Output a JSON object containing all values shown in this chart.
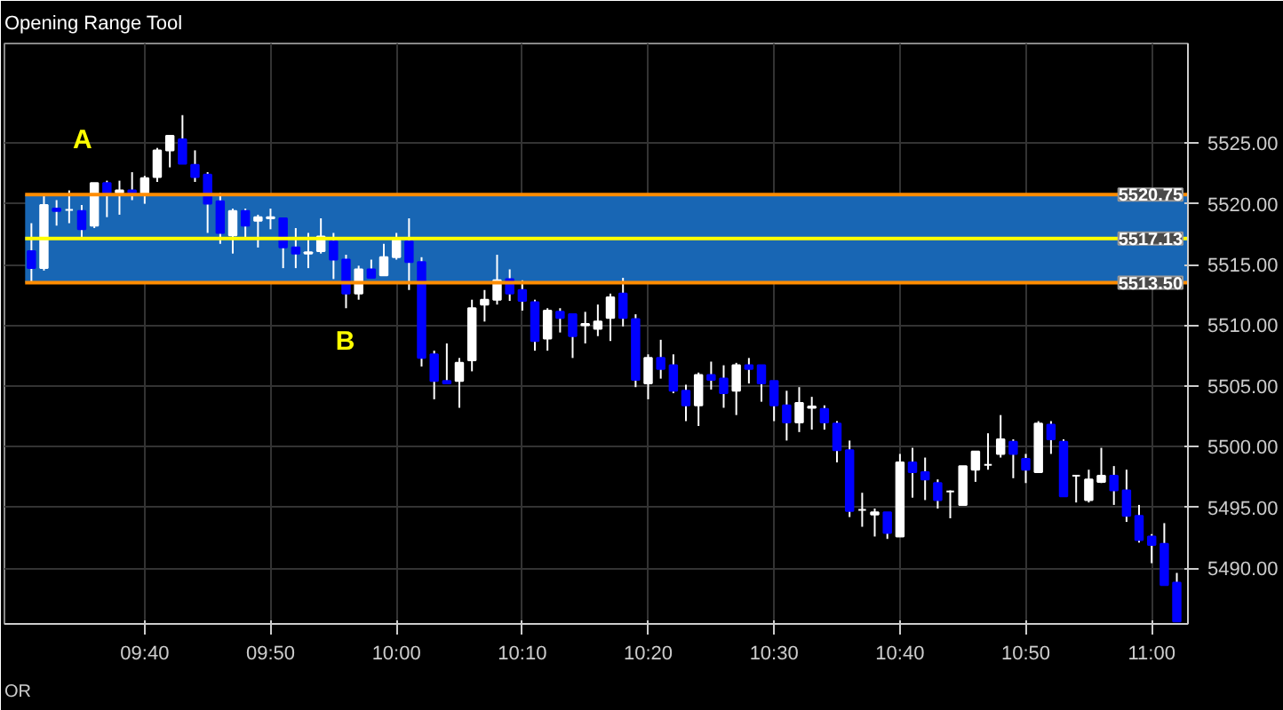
{
  "chart_data": {
    "type": "candlestick",
    "title": "Opening Range Tool",
    "x": [
      9.5167,
      9.5333,
      9.55,
      9.5667,
      9.5833,
      9.6,
      9.6167,
      9.6333,
      9.65,
      9.6667,
      9.6833,
      9.7,
      9.7167,
      9.7333,
      9.75,
      9.7667,
      9.7833,
      9.8,
      9.8167,
      9.8333,
      9.85,
      9.8667,
      9.8833,
      9.9,
      9.9167,
      9.9333,
      9.95,
      9.9667,
      9.9833,
      10.0,
      10.0167,
      10.0333,
      10.05,
      10.0667,
      10.0833,
      10.1,
      10.1167,
      10.1333,
      10.15,
      10.1667,
      10.1833,
      10.2,
      10.2167,
      10.2333,
      10.25,
      10.2667,
      10.2833,
      10.3,
      10.3167,
      10.3333,
      10.35,
      10.3667,
      10.3833,
      10.4,
      10.4167,
      10.4333,
      10.45,
      10.4667,
      10.4833,
      10.5,
      10.5167,
      10.5333,
      10.55,
      10.5667,
      10.5833,
      10.6,
      10.6167,
      10.6333,
      10.65,
      10.6667,
      10.6833,
      10.7,
      10.7167,
      10.7333,
      10.75,
      10.7667,
      10.7833,
      10.8,
      10.8167,
      10.8333,
      10.85,
      10.8667,
      10.8833,
      10.9,
      10.9167,
      10.9333,
      10.95,
      10.9667,
      10.9833,
      11.0,
      11.0167,
      11.0333
    ],
    "ohlc": [
      [
        5516.1,
        5518.4,
        5513.5,
        5514.7
      ],
      [
        5514.7,
        5520.75,
        5514.5,
        5519.9
      ],
      [
        5519.6,
        5520.3,
        5518.2,
        5519.4
      ],
      [
        5519.5,
        5521.1,
        5518.4,
        5519.5
      ],
      [
        5519.4,
        5519.9,
        5517.1,
        5517.9
      ],
      [
        5518.2,
        5521.7,
        5518.0,
        5521.7
      ],
      [
        5521.7,
        5521.9,
        5518.9,
        5520.9
      ],
      [
        5520.9,
        5521.9,
        5519.1,
        5521.1
      ],
      [
        5521.1,
        5522.6,
        5520.3,
        5520.9
      ],
      [
        5520.9,
        5522.3,
        5520.0,
        5522.1
      ],
      [
        5522.2,
        5524.6,
        5521.8,
        5524.4
      ],
      [
        5524.4,
        5525.6,
        5523.0,
        5525.6
      ],
      [
        5525.3,
        5527.3,
        5523.3,
        5523.3
      ],
      [
        5523.2,
        5524.4,
        5521.8,
        5522.2
      ],
      [
        5522.4,
        5522.6,
        5517.6,
        5520.0
      ],
      [
        5520.2,
        5520.9,
        5516.7,
        5517.6
      ],
      [
        5517.4,
        5519.6,
        5515.9,
        5519.4
      ],
      [
        5519.4,
        5519.6,
        5517.1,
        5518.2
      ],
      [
        5518.6,
        5519.1,
        5516.4,
        5518.9
      ],
      [
        5518.8,
        5519.6,
        5517.9,
        5518.9
      ],
      [
        5518.8,
        5518.8,
        5514.7,
        5516.4
      ],
      [
        5516.4,
        5518.0,
        5514.7,
        5515.9
      ],
      [
        5515.9,
        5517.6,
        5514.7,
        5516.0
      ],
      [
        5516.1,
        5518.8,
        5515.9,
        5517.3
      ],
      [
        5516.9,
        5517.6,
        5513.8,
        5515.4
      ],
      [
        5515.4,
        5515.8,
        5511.4,
        5512.6
      ],
      [
        5512.6,
        5514.9,
        5512.1,
        5514.6
      ],
      [
        5514.6,
        5515.4,
        5513.9,
        5513.9
      ],
      [
        5514.1,
        5516.7,
        5514.1,
        5515.6
      ],
      [
        5515.6,
        5517.6,
        5515.4,
        5517.0
      ],
      [
        5516.9,
        5518.8,
        5512.9,
        5515.2
      ],
      [
        5515.2,
        5515.6,
        5506.6,
        5507.3
      ],
      [
        5507.6,
        5507.9,
        5503.9,
        5505.4
      ],
      [
        5505.4,
        5508.5,
        5505.2,
        5505.2
      ],
      [
        5505.4,
        5507.3,
        5503.2,
        5506.9
      ],
      [
        5507.1,
        5512.1,
        5506.2,
        5511.4
      ],
      [
        5511.7,
        5512.9,
        5510.3,
        5512.1
      ],
      [
        5512.1,
        5515.8,
        5511.7,
        5513.7
      ],
      [
        5513.8,
        5514.6,
        5512.0,
        5512.6
      ],
      [
        5512.9,
        5513.7,
        5511.2,
        5512.0
      ],
      [
        5511.9,
        5512.1,
        5507.9,
        5508.7
      ],
      [
        5508.9,
        5511.4,
        5507.9,
        5511.2
      ],
      [
        5511.1,
        5511.4,
        5509.4,
        5510.6
      ],
      [
        5510.9,
        5510.9,
        5507.3,
        5509.1
      ],
      [
        5510.0,
        5511.1,
        5508.5,
        5510.1
      ],
      [
        5509.7,
        5511.7,
        5509.1,
        5510.3
      ],
      [
        5510.6,
        5512.6,
        5508.7,
        5512.3
      ],
      [
        5512.6,
        5513.9,
        5509.9,
        5510.6
      ],
      [
        5510.5,
        5510.9,
        5504.9,
        5505.5
      ],
      [
        5505.2,
        5507.6,
        5503.9,
        5507.3
      ],
      [
        5507.3,
        5508.8,
        5505.6,
        5506.4
      ],
      [
        5506.7,
        5507.6,
        5504.4,
        5504.6
      ],
      [
        5504.6,
        5505.1,
        5502.1,
        5503.4
      ],
      [
        5503.4,
        5506.1,
        5501.7,
        5505.9
      ],
      [
        5505.9,
        5507.0,
        5504.7,
        5505.5
      ],
      [
        5505.6,
        5506.7,
        5503.2,
        5504.4
      ],
      [
        5504.6,
        5506.9,
        5502.6,
        5506.7
      ],
      [
        5506.7,
        5507.3,
        5505.2,
        5506.4
      ],
      [
        5506.7,
        5506.7,
        5503.7,
        5505.2
      ],
      [
        5505.4,
        5505.4,
        5502.1,
        5503.4
      ],
      [
        5503.4,
        5504.6,
        5500.5,
        5502.0
      ],
      [
        5502.0,
        5504.9,
        5501.2,
        5503.6
      ],
      [
        5503.2,
        5504.1,
        5501.4,
        5503.3
      ],
      [
        5503.1,
        5503.4,
        5501.4,
        5502.0
      ],
      [
        5501.9,
        5502.1,
        5498.7,
        5499.7
      ],
      [
        5499.7,
        5500.5,
        5494.2,
        5494.7
      ],
      [
        5494.8,
        5496.2,
        5493.4,
        5494.8
      ],
      [
        5494.4,
        5494.9,
        5492.6,
        5494.6
      ],
      [
        5494.6,
        5494.6,
        5492.4,
        5492.9
      ],
      [
        5492.6,
        5499.4,
        5492.6,
        5498.7
      ],
      [
        5498.7,
        5499.9,
        5495.8,
        5497.9
      ],
      [
        5497.9,
        5499.1,
        5495.6,
        5497.3
      ],
      [
        5497.0,
        5497.3,
        5494.9,
        5495.6
      ],
      [
        5496.3,
        5496.4,
        5494.1,
        5496.3
      ],
      [
        5495.2,
        5498.4,
        5495.2,
        5498.4
      ],
      [
        5498.1,
        5499.6,
        5497.1,
        5499.6
      ],
      [
        5498.5,
        5501.1,
        5498.1,
        5498.5
      ],
      [
        5499.4,
        5502.6,
        5499.1,
        5500.6
      ],
      [
        5500.4,
        5500.6,
        5497.4,
        5499.4
      ],
      [
        5499.0,
        5499.4,
        5497.0,
        5498.1
      ],
      [
        5497.9,
        5502.1,
        5497.9,
        5501.9
      ],
      [
        5501.8,
        5502.1,
        5499.4,
        5500.6
      ],
      [
        5500.4,
        5500.6,
        5495.9,
        5495.9
      ],
      [
        5497.6,
        5497.6,
        5495.4,
        5497.6
      ],
      [
        5495.6,
        5498.1,
        5495.4,
        5497.3
      ],
      [
        5497.1,
        5499.9,
        5497.0,
        5497.6
      ],
      [
        5497.6,
        5498.4,
        5495.2,
        5496.4
      ],
      [
        5496.4,
        5498.1,
        5493.8,
        5494.3
      ],
      [
        5494.3,
        5495.2,
        5492.1,
        5492.3
      ],
      [
        5492.6,
        5492.8,
        5490.4,
        5491.9
      ],
      [
        5492.0,
        5493.7,
        5488.6,
        5488.6
      ],
      [
        5488.8,
        5489.6,
        5485.6,
        5485.6
      ]
    ],
    "colors": [
      "#0000ff",
      "#ffffff",
      "#0000ff",
      "#ffffff",
      "#0000ff",
      "#ffffff",
      "#0000ff",
      "#ffffff",
      "#0000ff",
      "#ffffff",
      "#ffffff",
      "#ffffff",
      "#0000ff",
      "#0000ff",
      "#0000ff",
      "#0000ff",
      "#ffffff",
      "#0000ff",
      "#ffffff",
      "#ffffff",
      "#0000ff",
      "#0000ff",
      "#ffffff",
      "#ffffff",
      "#0000ff",
      "#0000ff",
      "#ffffff",
      "#0000ff",
      "#ffffff",
      "#ffffff",
      "#0000ff",
      "#0000ff",
      "#0000ff",
      "#0000ff",
      "#ffffff",
      "#ffffff",
      "#ffffff",
      "#ffffff",
      "#0000ff",
      "#0000ff",
      "#0000ff",
      "#ffffff",
      "#0000ff",
      "#0000ff",
      "#ffffff",
      "#ffffff",
      "#ffffff",
      "#0000ff",
      "#0000ff",
      "#ffffff",
      "#0000ff",
      "#0000ff",
      "#0000ff",
      "#ffffff",
      "#0000ff",
      "#0000ff",
      "#ffffff",
      "#0000ff",
      "#0000ff",
      "#0000ff",
      "#0000ff",
      "#ffffff",
      "#ffffff",
      "#0000ff",
      "#0000ff",
      "#0000ff",
      "#ffffff",
      "#ffffff",
      "#0000ff",
      "#ffffff",
      "#0000ff",
      "#0000ff",
      "#0000ff",
      "#ffffff",
      "#ffffff",
      "#ffffff",
      "#ffffff",
      "#ffffff",
      "#0000ff",
      "#0000ff",
      "#ffffff",
      "#0000ff",
      "#0000ff",
      "#ffffff",
      "#ffffff",
      "#ffffff",
      "#0000ff",
      "#0000ff",
      "#0000ff",
      "#0000ff",
      "#0000ff",
      "#0000ff"
    ],
    "xlim": [
      9.481,
      11.048
    ],
    "ylim": [
      5485.4,
      5533.2
    ],
    "xticks": [
      {
        "value": 9.6667,
        "label": "09:40"
      },
      {
        "value": 9.8333,
        "label": "09:50"
      },
      {
        "value": 10.0,
        "label": "10:00"
      },
      {
        "value": 10.1667,
        "label": "10:10"
      },
      {
        "value": 10.3333,
        "label": "10:20"
      },
      {
        "value": 10.5,
        "label": "10:30"
      },
      {
        "value": 10.6667,
        "label": "10:40"
      },
      {
        "value": 10.8333,
        "label": "10:50"
      },
      {
        "value": 11.0,
        "label": "11:00"
      }
    ],
    "yticks": [
      {
        "value": 5490,
        "label": "5490.00"
      },
      {
        "value": 5495,
        "label": "5495.00"
      },
      {
        "value": 5500,
        "label": "5500.00"
      },
      {
        "value": 5505,
        "label": "5505.00"
      },
      {
        "value": 5510,
        "label": "5510.00"
      },
      {
        "value": 5515,
        "label": "5515.00"
      },
      {
        "value": 5520,
        "label": "5520.00"
      },
      {
        "value": 5525,
        "label": "5525.00"
      }
    ],
    "ref_lines": [
      {
        "axis": "y",
        "value": 5520.75,
        "label": "5520.75",
        "color": "#ff8c00"
      },
      {
        "axis": "y",
        "value": 5517.13,
        "label": "5517.13",
        "color": "#ffff00"
      },
      {
        "axis": "y",
        "value": 5513.5,
        "label": "5513.50",
        "color": "#ff8c00"
      }
    ],
    "bands": [
      {
        "axis": "y",
        "from": 5513.5,
        "to": 5520.75,
        "color": "#1866b4"
      }
    ],
    "annotations": [
      "OR",
      "A",
      "B"
    ],
    "grid": true
  }
}
